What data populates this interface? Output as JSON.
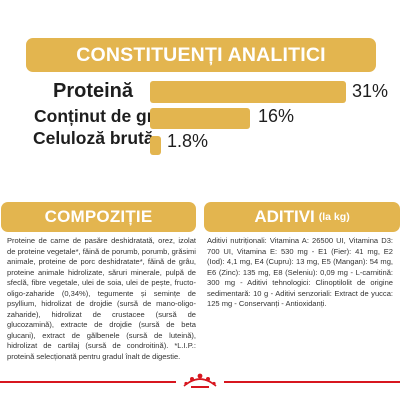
{
  "analytic": {
    "title": "CONSTITUENȚI ANALITICI",
    "bar_color": "#e3b54f",
    "items": [
      {
        "label": "Proteină",
        "value_text": "31%",
        "value": 31
      },
      {
        "label": "Conținut de grăsimi",
        "value_text": "16%",
        "value": 16
      },
      {
        "label": "Celuloză brută",
        "value_text": "1.8%",
        "value": 1.8
      }
    ]
  },
  "composition": {
    "title": "COMPOZIȚIE",
    "text": "Proteine de carne de pasăre deshidratată, orez, izolat de proteine vegetale*, făină de porumb, porumb, grăsimi animale, proteine de porc deshidratate*, făină de grâu, proteine animale hidrolizate, săruri minerale, pulpă de sfeclă, fibre vegetale, ulei de soia, ulei de pește, fructo-oligo-zaharide (0,34%), tegumente și semințe de psyllium, hidrolizat de drojdie (sursă de mano-oligo-zaharide), hidrolizat de crustacee (sursă de glucozamină), extracte de drojdie (sursă de beta glucani), extract de gălbenele (sursă de luteină), hidrolizat de cartilaj (sursă de condroitină). *L.I.P.: proteină selecționată pentru gradul înalt de digestie."
  },
  "additives": {
    "title": "ADITIVI",
    "unit": "(la kg)",
    "text": "Aditivi nutriționali: Vitamina A: 26500 UI, Vitamina D3: 700 UI, Vitamina E: 530 mg - E1 (Fier): 41 mg, E2 (Iod): 4,1 mg, E4 (Cupru): 13 mg, E5 (Mangan): 54 mg, E6 (Zinc): 135 mg, E8 (Seleniu): 0,09 mg - L-carnitină: 300 mg - Aditivi tehnologici: Clinoptilolit de origine sedimentară: 10 g - Aditivi senzoriali: Extract de yucca: 125 mg - Conservanți - Antioxidanți."
  },
  "brand": {
    "logo_icon": "royal-canin-crown-icon",
    "accent_color": "#d7161f"
  }
}
